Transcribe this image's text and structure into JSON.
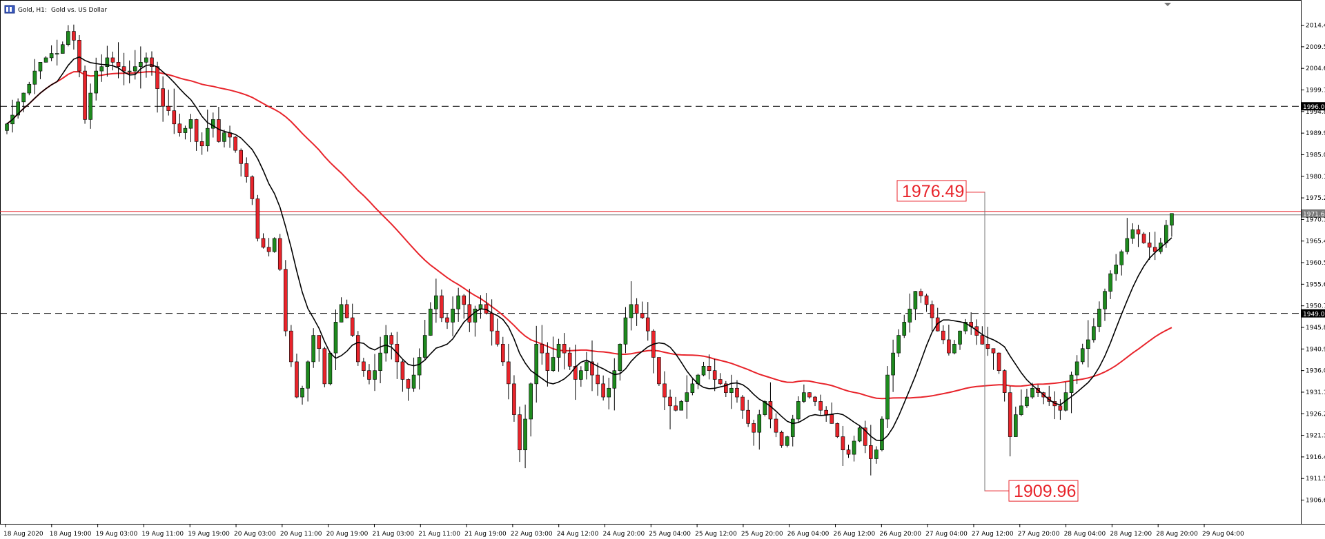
{
  "header": {
    "symbol": "Gold, H1:",
    "description": "Gold vs. US Dollar"
  },
  "colors": {
    "bull": "#1e8a1e",
    "bear": "#e8242b",
    "ma_fast": "#000000",
    "ma_slow": "#e8242b",
    "grid": "#000000"
  },
  "chart_data": {
    "type": "candlestick",
    "title": "",
    "ylim": [
      1902.0,
      2017.0
    ],
    "y_ticks": [
      "2014.41",
      "2009.51",
      "2004.61",
      "1999.71",
      "1994.81",
      "1989.91",
      "1985.01",
      "1980.11",
      "1975.21",
      "1970.31",
      "1965.41",
      "1960.51",
      "1955.61",
      "1950.71",
      "1945.81",
      "1940.91",
      "1936.01",
      "1931.11",
      "1926.21",
      "1921.31",
      "1916.41",
      "1911.51",
      "1906.61"
    ],
    "x_ticks": [
      "18 Aug 2020",
      "18 Aug 19:00",
      "19 Aug 03:00",
      "19 Aug 11:00",
      "19 Aug 19:00",
      "20 Aug 03:00",
      "20 Aug 11:00",
      "20 Aug 19:00",
      "21 Aug 03:00",
      "21 Aug 11:00",
      "21 Aug 19:00",
      "22 Aug 03:00",
      "24 Aug 12:00",
      "24 Aug 20:00",
      "25 Aug 04:00",
      "25 Aug 12:00",
      "25 Aug 20:00",
      "26 Aug 04:00",
      "26 Aug 12:00",
      "26 Aug 20:00",
      "27 Aug 04:00",
      "27 Aug 12:00",
      "27 Aug 20:00",
      "28 Aug 04:00",
      "28 Aug 12:00",
      "28 Aug 20:00",
      "29 Aug 04:00"
    ],
    "horizontal_levels": [
      {
        "label": "1996.00",
        "value": 1996.0,
        "style": "dashed"
      },
      {
        "label": "1949.00",
        "value": 1949.0,
        "style": "dashed"
      },
      {
        "label": "1971.67",
        "value": 1971.67,
        "style": "current"
      }
    ],
    "annotations": [
      {
        "text": "1976.49",
        "value": 1976.49
      },
      {
        "text": "1909.96",
        "value": 1909.96
      }
    ],
    "closes": [
      1992,
      1994,
      1997,
      1999,
      2001,
      2004,
      2006,
      2007,
      2008,
      2008,
      2010,
      2013,
      2011,
      2004,
      1993,
      1999,
      2004,
      2005,
      2007,
      2006,
      2005,
      2004,
      2004,
      2005,
      2006,
      2007,
      2005,
      2000,
      1996,
      1995,
      1992,
      1990,
      1991,
      1993,
      1988,
      1987,
      1991,
      1993,
      1988,
      1990,
      1989,
      1986,
      1983,
      1980,
      1975,
      1966,
      1964,
      1963,
      1966,
      1959,
      1945,
      1938,
      1930,
      1932,
      1938,
      1944,
      1941,
      1933,
      1940,
      1947,
      1951,
      1948,
      1944,
      1938,
      1936,
      1934,
      1936,
      1940,
      1944,
      1942,
      1938,
      1934,
      1932,
      1935,
      1939,
      1944,
      1950,
      1953,
      1948,
      1947,
      1950,
      1953,
      1951,
      1947,
      1950,
      1951,
      1949,
      1945,
      1942,
      1938,
      1933,
      1926,
      1918,
      1925,
      1933,
      1942,
      1940,
      1936,
      1939,
      1942,
      1940,
      1937,
      1934,
      1936,
      1938,
      1935,
      1933,
      1930,
      1932,
      1936,
      1942,
      1948,
      1951,
      1949,
      1948,
      1945,
      1939,
      1933,
      1930,
      1928,
      1927,
      1929,
      1931,
      1933,
      1935,
      1937,
      1936,
      1934,
      1933,
      1931,
      1932,
      1930,
      1927,
      1924,
      1922,
      1926,
      1929,
      1925,
      1922,
      1919,
      1921,
      1925,
      1929,
      1931,
      1930,
      1929,
      1927,
      1926,
      1924,
      1921,
      1918,
      1917,
      1920,
      1923,
      1919,
      1916,
      1918,
      1925,
      1935,
      1940,
      1944,
      1947,
      1950,
      1954,
      1953,
      1951,
      1948,
      1945,
      1943,
      1940,
      1942,
      1945,
      1947,
      1946,
      1944,
      1942,
      1941,
      1940,
      1936,
      1931,
      1921,
      1926,
      1928,
      1930,
      1932,
      1931,
      1930,
      1929,
      1928,
      1927,
      1931,
      1935,
      1938,
      1941,
      1943,
      1946,
      1950,
      1954,
      1958,
      1960,
      1963,
      1966,
      1968,
      1967,
      1965,
      1964,
      1963,
      1965,
      1969,
      1971.67
    ],
    "series": [
      {
        "name": "",
        "kind": "moving-average-fast"
      },
      {
        "name": "",
        "kind": "moving-average-slow"
      }
    ]
  }
}
